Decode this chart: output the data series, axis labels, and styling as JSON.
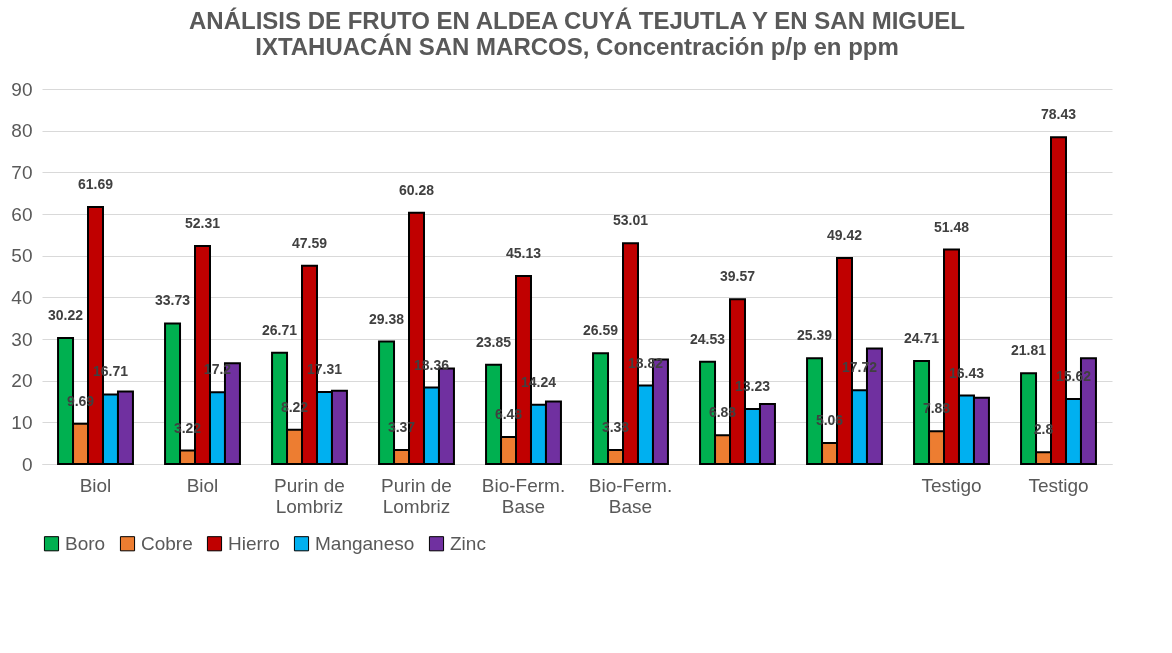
{
  "chart_data": {
    "type": "bar",
    "title": "ANÁLISIS DE FRUTO EN ALDEA CUYÁ TEJUTLA Y EN SAN MIGUEL IXTAHUACÁN SAN MARCOS, Concentración p/p en ppm",
    "categories": [
      "Biol",
      "Biol",
      "Purin de Lombriz",
      "Purin de Lombriz",
      "Bio-Ferm. Base",
      "Bio-Ferm. Base",
      null,
      null,
      "Testigo",
      "Testigo"
    ],
    "series": [
      {
        "name": "Boro",
        "color": "#00b050",
        "values": [
          30.22,
          33.73,
          26.71,
          29.38,
          23.85,
          26.59,
          24.53,
          25.39,
          24.71,
          21.81
        ],
        "value_labels": [
          "30.22",
          "33.73",
          "26.71",
          "29.38",
          "23.85",
          "26.59",
          "24.53",
          "25.39",
          "24.71",
          "21.81"
        ]
      },
      {
        "name": "Cobre",
        "color": "#ed7d31",
        "values": [
          9.69,
          3.22,
          8.22,
          3.37,
          6.48,
          3.38,
          6.88,
          5.06,
          7.88,
          2.8
        ],
        "value_labels": [
          "9.69",
          "3.22",
          "8.22",
          "3.37",
          "6.48",
          "3.38",
          "6.88",
          "5.06",
          "7.88",
          "2.8"
        ]
      },
      {
        "name": "Hierro",
        "color": "#c00000",
        "values": [
          61.69,
          52.31,
          47.59,
          60.28,
          45.13,
          53.01,
          39.57,
          49.42,
          51.48,
          78.43
        ],
        "value_labels": [
          "61.69",
          "52.31",
          "47.59",
          "60.28",
          "45.13",
          "53.01",
          "39.57",
          "49.42",
          "51.48",
          "78.43"
        ]
      },
      {
        "name": "Manganeso",
        "color": "#00b0f0",
        "values": [
          16.71,
          17.2,
          17.31,
          18.36,
          14.24,
          18.82,
          13.23,
          17.72,
          16.43,
          15.62
        ],
        "value_labels": [
          "16.71",
          "17.2",
          "17.31",
          "18.36",
          "14.24",
          "18.82",
          "13.23",
          "17.72",
          "16.43",
          "15.62"
        ]
      },
      {
        "name": "Zinc",
        "color": "#7030a0",
        "values": [
          17.4,
          24.2,
          17.6,
          22.9,
          15.0,
          25.1,
          14.4,
          27.7,
          15.9,
          25.4
        ]
      }
    ],
    "ylim": [
      0,
      90
    ],
    "yticks": [
      0,
      10,
      20,
      30,
      40,
      50,
      60,
      70,
      80,
      90
    ],
    "grid": "y",
    "legend": "bottom"
  }
}
